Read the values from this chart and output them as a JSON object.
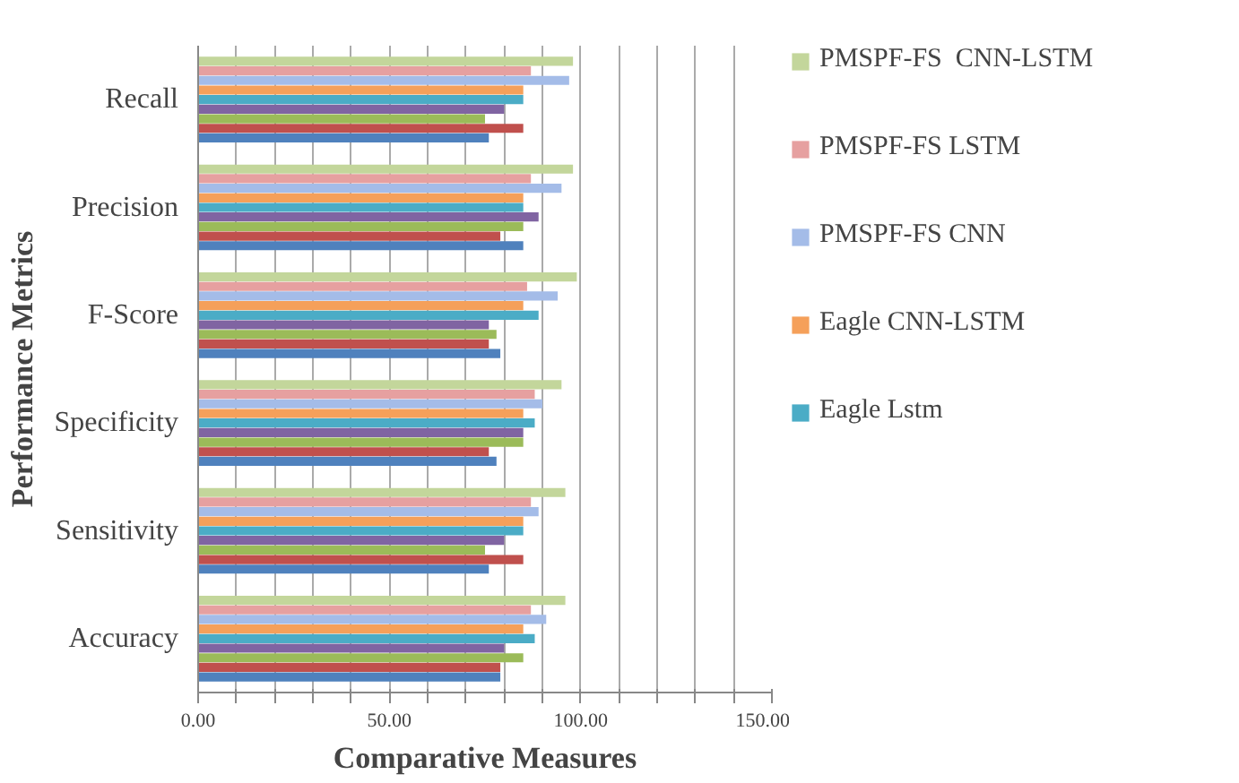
{
  "chart_data": {
    "type": "bar",
    "orientation": "horizontal",
    "xlabel": "Comparative Measures",
    "ylabel": "Performance Metrics",
    "categories": [
      "Recall",
      "Precision",
      "F-Score",
      "Specificity",
      "Sensitivity",
      "Accuracy"
    ],
    "series": [
      {
        "name": "PMSPF-FS  CNN-LSTM",
        "color": "#c3d69b",
        "values": [
          98,
          98,
          99,
          95,
          96,
          96
        ]
      },
      {
        "name": "PMSPF-FS LSTM",
        "color": "#e6a0a0",
        "values": [
          87,
          87,
          86,
          88,
          87,
          87
        ]
      },
      {
        "name": "PMSPF-FS CNN",
        "color": "#a4bce8",
        "values": [
          97,
          95,
          94,
          90,
          89,
          91
        ]
      },
      {
        "name": "Eagle CNN-LSTM",
        "color": "#f5a05a",
        "values": [
          85,
          85,
          85,
          85,
          85,
          85
        ]
      },
      {
        "name": "Eagle Lstm",
        "color": "#4bacc6",
        "values": [
          85,
          85,
          89,
          88,
          85,
          88
        ]
      },
      {
        "color": "#8064a2",
        "values": [
          80,
          89,
          76,
          85,
          80,
          80
        ]
      },
      {
        "color": "#9bbb59",
        "values": [
          75,
          85,
          78,
          85,
          75,
          85
        ]
      },
      {
        "color": "#c0504d",
        "values": [
          85,
          79,
          76,
          76,
          85,
          79
        ]
      },
      {
        "color": "#4f81bd",
        "values": [
          76,
          85,
          79,
          78,
          76,
          79
        ]
      }
    ],
    "xlim": [
      0,
      150
    ],
    "xticks": [
      {
        "value": 0,
        "label": "0.00"
      },
      {
        "value": 10,
        "label": null
      },
      {
        "value": 20,
        "label": null
      },
      {
        "value": 30,
        "label": null
      },
      {
        "value": 40,
        "label": null
      },
      {
        "value": 50,
        "label": "50.00"
      },
      {
        "value": 60,
        "label": null
      },
      {
        "value": 70,
        "label": null
      },
      {
        "value": 80,
        "label": null
      },
      {
        "value": 90,
        "label": null
      },
      {
        "value": 100,
        "label": "100.00"
      },
      {
        "value": 110,
        "label": null
      },
      {
        "value": 120,
        "label": null
      },
      {
        "value": 130,
        "label": null
      },
      {
        "value": 140,
        "label": null
      },
      {
        "value": 150,
        "label": "150.00"
      }
    ],
    "grid": "x",
    "legend": "right"
  }
}
